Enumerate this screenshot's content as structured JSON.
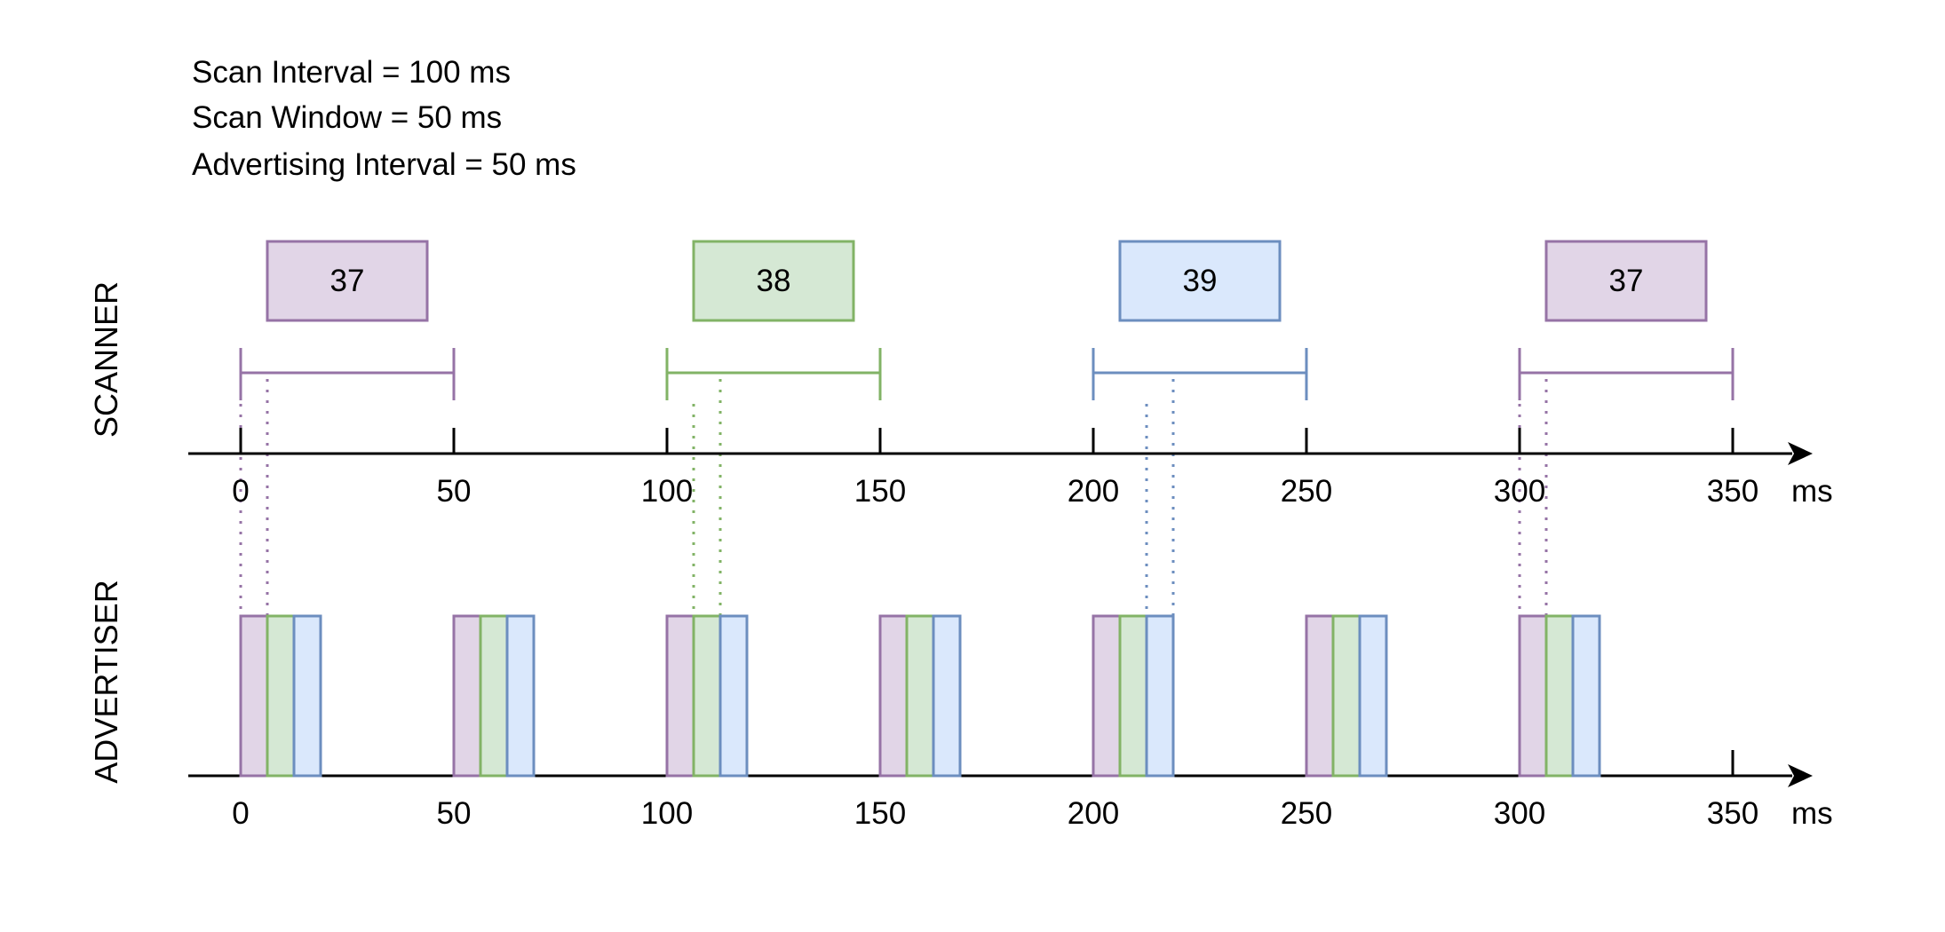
{
  "header": {
    "lines": [
      "Scan Interval = 100 ms",
      "Scan Window = 50 ms",
      "Advertising Interval = 50 ms"
    ]
  },
  "colors": {
    "ch37": {
      "stroke": "#9673a6",
      "fill": "#e1d5e7"
    },
    "ch38": {
      "stroke": "#82b366",
      "fill": "#d5e8d4"
    },
    "ch39": {
      "stroke": "#6c8ebf",
      "fill": "#dae8fc"
    },
    "axis": "#000000"
  },
  "chart_data": {
    "type": "timing-diagram",
    "unit": "ms",
    "xlim": [
      0,
      350
    ],
    "ticks": [
      0,
      50,
      100,
      150,
      200,
      250,
      300,
      350
    ],
    "tick_labels": [
      "0",
      "50",
      "100",
      "150",
      "200",
      "250",
      "300",
      "350"
    ],
    "unit_label": "ms",
    "scanner": {
      "label": "SCANNER",
      "windows": [
        {
          "start": 0,
          "end": 50,
          "channel": "37"
        },
        {
          "start": 100,
          "end": 150,
          "channel": "38"
        },
        {
          "start": 200,
          "end": 250,
          "channel": "39"
        },
        {
          "start": 300,
          "end": 350,
          "channel": "37"
        }
      ],
      "received_packets": [
        {
          "start": 0,
          "end": 6.25,
          "channel": "37"
        },
        {
          "start": 106.25,
          "end": 112.5,
          "channel": "38"
        },
        {
          "start": 212.5,
          "end": 218.75,
          "channel": "39"
        },
        {
          "start": 300,
          "end": 306.25,
          "channel": "37"
        }
      ]
    },
    "advertiser": {
      "label": "ADVERTISER",
      "event_starts": [
        0,
        50,
        100,
        150,
        200,
        250,
        300
      ],
      "packet_duration": 6.25,
      "channels": [
        "37",
        "38",
        "39"
      ]
    }
  }
}
